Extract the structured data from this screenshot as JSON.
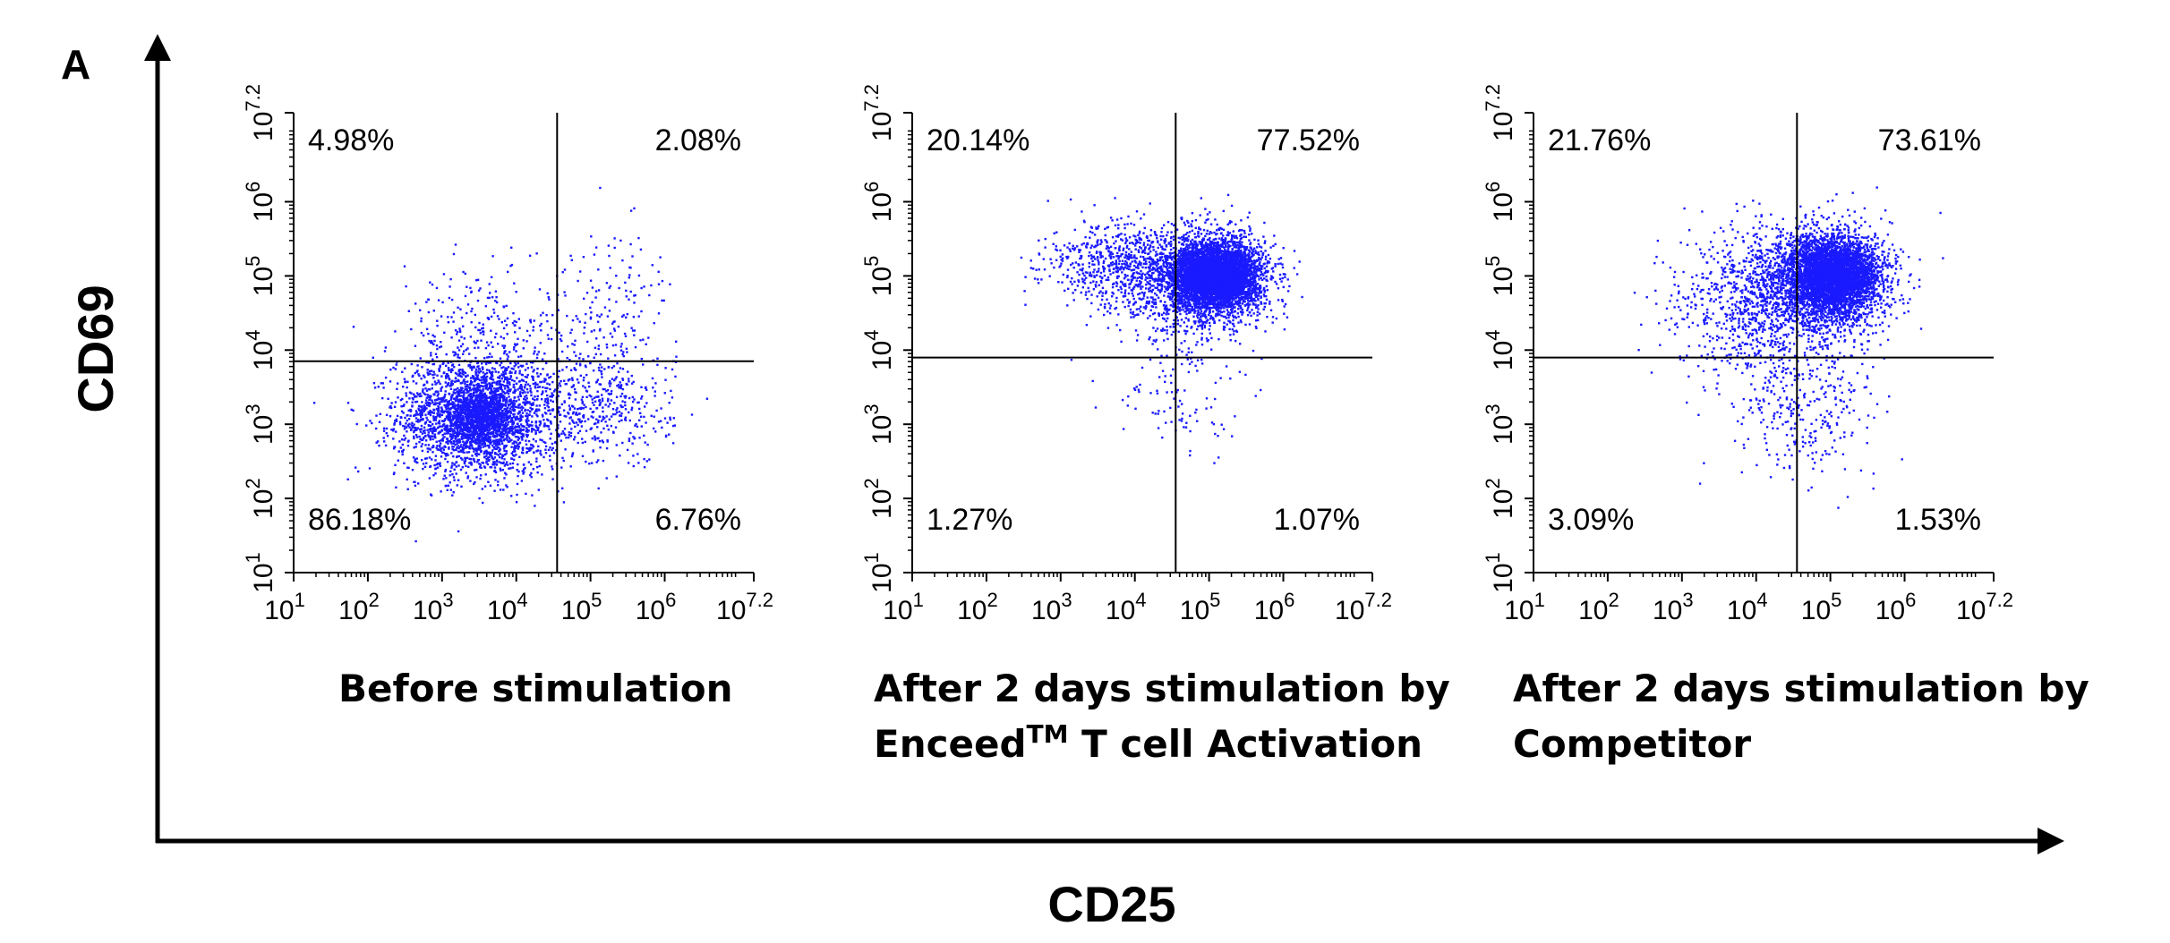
{
  "figure": {
    "panel_label": "A",
    "y_axis_label": "CD69",
    "x_axis_label": "CD25"
  },
  "colors": {
    "points": "#1a1aff",
    "axes": "#000000",
    "background": "#ffffff"
  },
  "chart_data": [
    {
      "type": "scatter",
      "title_lines": [
        "Before stimulation"
      ],
      "xscale": "log10",
      "yscale": "log10",
      "xlim": [
        1,
        7.2
      ],
      "ylim": [
        1,
        7.2
      ],
      "x_tick_labels": [
        {
          "base": "10",
          "exp": "1"
        },
        {
          "base": "10",
          "exp": "2"
        },
        {
          "base": "10",
          "exp": "3"
        },
        {
          "base": "10",
          "exp": "4"
        },
        {
          "base": "10",
          "exp": "5"
        },
        {
          "base": "10",
          "exp": "6"
        },
        {
          "base": "10",
          "exp": "7.2"
        }
      ],
      "y_tick_labels": [
        {
          "base": "10",
          "exp": "1"
        },
        {
          "base": "10",
          "exp": "2"
        },
        {
          "base": "10",
          "exp": "3"
        },
        {
          "base": "10",
          "exp": "4"
        },
        {
          "base": "10",
          "exp": "5"
        },
        {
          "base": "10",
          "exp": "6"
        },
        {
          "base": "10",
          "exp": "7.2"
        }
      ],
      "gate": {
        "x": 4.55,
        "y": 3.85
      },
      "quadrants": {
        "upper_left": "4.98%",
        "upper_right": "2.08%",
        "lower_left": "86.18%",
        "lower_right": "6.76%"
      },
      "populations": [
        {
          "cx": 3.5,
          "cy": 3.1,
          "sx": 0.55,
          "sy": 0.4,
          "n": 2600
        },
        {
          "cx": 3.5,
          "cy": 3.1,
          "sx": 0.2,
          "sy": 0.18,
          "n": 900
        },
        {
          "cx": 5.2,
          "cy": 3.2,
          "sx": 0.45,
          "sy": 0.4,
          "n": 380
        },
        {
          "cx": 3.5,
          "cy": 4.2,
          "sx": 0.55,
          "sy": 0.45,
          "n": 250
        },
        {
          "cx": 5.2,
          "cy": 4.5,
          "sx": 0.5,
          "sy": 0.55,
          "n": 180
        }
      ]
    },
    {
      "type": "scatter",
      "title_lines": [
        "After 2 days stimulation by",
        "Enceed",
        "TM",
        " T cell Activation"
      ],
      "xscale": "log10",
      "yscale": "log10",
      "xlim": [
        1,
        7.2
      ],
      "ylim": [
        1,
        7.2
      ],
      "x_tick_labels": [
        {
          "base": "10",
          "exp": "1"
        },
        {
          "base": "10",
          "exp": "2"
        },
        {
          "base": "10",
          "exp": "3"
        },
        {
          "base": "10",
          "exp": "4"
        },
        {
          "base": "10",
          "exp": "5"
        },
        {
          "base": "10",
          "exp": "6"
        },
        {
          "base": "10",
          "exp": "7.2"
        }
      ],
      "y_tick_labels": [
        {
          "base": "10",
          "exp": "1"
        },
        {
          "base": "10",
          "exp": "2"
        },
        {
          "base": "10",
          "exp": "3"
        },
        {
          "base": "10",
          "exp": "4"
        },
        {
          "base": "10",
          "exp": "5"
        },
        {
          "base": "10",
          "exp": "6"
        },
        {
          "base": "10",
          "exp": "7.2"
        }
      ],
      "gate": {
        "x": 4.55,
        "y": 3.9
      },
      "quadrants": {
        "upper_left": "20.14%",
        "upper_right": "77.52%",
        "lower_left": "1.27%",
        "lower_right": "1.07%"
      },
      "populations": [
        {
          "cx": 5.1,
          "cy": 5.0,
          "sx": 0.28,
          "sy": 0.22,
          "n": 4200
        },
        {
          "cx": 4.9,
          "cy": 4.95,
          "sx": 0.45,
          "sy": 0.35,
          "n": 1500
        },
        {
          "cx": 3.8,
          "cy": 5.15,
          "sx": 0.5,
          "sy": 0.3,
          "n": 650
        },
        {
          "cx": 4.6,
          "cy": 3.5,
          "sx": 0.5,
          "sy": 0.5,
          "n": 120
        }
      ]
    },
    {
      "type": "scatter",
      "title_lines": [
        "After 2 days stimulation by",
        "Competitor"
      ],
      "xscale": "log10",
      "yscale": "log10",
      "xlim": [
        1,
        7.2
      ],
      "ylim": [
        1,
        7.2
      ],
      "x_tick_labels": [
        {
          "base": "10",
          "exp": "1"
        },
        {
          "base": "10",
          "exp": "2"
        },
        {
          "base": "10",
          "exp": "3"
        },
        {
          "base": "10",
          "exp": "4"
        },
        {
          "base": "10",
          "exp": "5"
        },
        {
          "base": "10",
          "exp": "6"
        },
        {
          "base": "10",
          "exp": "7.2"
        }
      ],
      "y_tick_labels": [
        {
          "base": "10",
          "exp": "1"
        },
        {
          "base": "10",
          "exp": "2"
        },
        {
          "base": "10",
          "exp": "3"
        },
        {
          "base": "10",
          "exp": "4"
        },
        {
          "base": "10",
          "exp": "5"
        },
        {
          "base": "10",
          "exp": "6"
        },
        {
          "base": "10",
          "exp": "7.2"
        }
      ],
      "gate": {
        "x": 4.55,
        "y": 3.9
      },
      "quadrants": {
        "upper_left": "21.76%",
        "upper_right": "73.61%",
        "lower_left": "3.09%",
        "lower_right": "1.53%"
      },
      "populations": [
        {
          "cx": 5.05,
          "cy": 5.0,
          "sx": 0.3,
          "sy": 0.25,
          "n": 3800
        },
        {
          "cx": 4.8,
          "cy": 4.9,
          "sx": 0.5,
          "sy": 0.4,
          "n": 1500
        },
        {
          "cx": 3.9,
          "cy": 4.6,
          "sx": 0.55,
          "sy": 0.5,
          "n": 700
        },
        {
          "cx": 4.6,
          "cy": 3.3,
          "sx": 0.5,
          "sy": 0.5,
          "n": 320
        }
      ]
    }
  ]
}
